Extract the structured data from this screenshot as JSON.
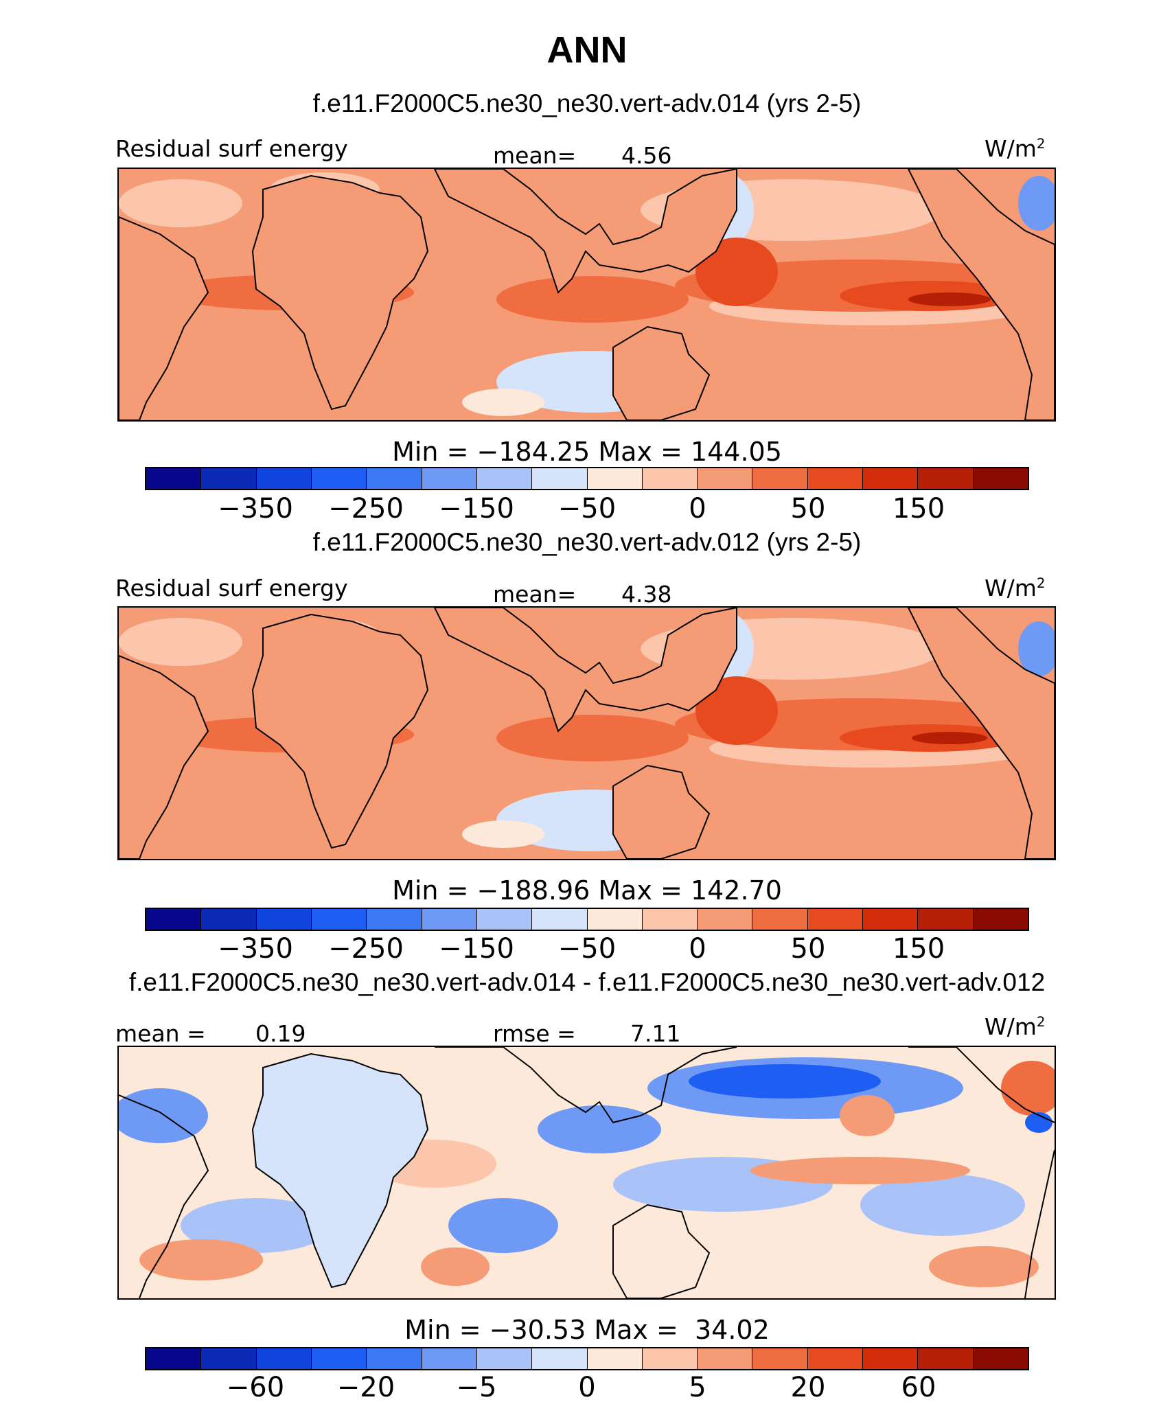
{
  "title": "ANN",
  "units": "W/m",
  "units_superscript": "2",
  "colorbar_colors": [
    "#08088c",
    "#0b2ab8",
    "#0f45dc",
    "#1f5ef2",
    "#3d78f4",
    "#6e9af6",
    "#a9c3f8",
    "#d6e4fb",
    "#fde9d9",
    "#fcc6ac",
    "#f59c76",
    "#f06d42",
    "#e84a1f",
    "#d42d0a",
    "#b51f05",
    "#8a0b02"
  ],
  "panels": [
    {
      "case_title": "f.e11.F2000C5.ne30_ne30.vert-adv.014 (yrs 2-5)",
      "left_label": "Residual surf energy",
      "mean_label": "mean=",
      "mean_value": "4.56",
      "minmax": "Min = −184.25 Max = 144.05",
      "field": "residual_surf_energy_014",
      "min": -184.25,
      "max": 144.05,
      "ticks": [
        "−350",
        "−250",
        "−150",
        "−50",
        "0",
        "50",
        "150"
      ]
    },
    {
      "case_title": "f.e11.F2000C5.ne30_ne30.vert-adv.012 (yrs 2-5)",
      "left_label": "Residual surf energy",
      "mean_label": "mean=",
      "mean_value": "4.38",
      "minmax": "Min = −188.96 Max = 142.70",
      "field": "residual_surf_energy_012",
      "min": -188.96,
      "max": 142.7,
      "ticks": [
        "−350",
        "−250",
        "−150",
        "−50",
        "0",
        "50",
        "150"
      ]
    },
    {
      "case_title": "f.e11.F2000C5.ne30_ne30.vert-adv.014 - f.e11.F2000C5.ne30_ne30.vert-adv.012",
      "left_label": "mean =",
      "left_value": "0.19",
      "mean_label": "rmse =",
      "mean_value": "7.11",
      "minmax": "Min = −30.53 Max =  34.02",
      "field": "difference",
      "min": -30.53,
      "max": 34.02,
      "ticks": [
        "−60",
        "−20",
        "−5",
        "0",
        "5",
        "20",
        "60"
      ]
    }
  ]
}
